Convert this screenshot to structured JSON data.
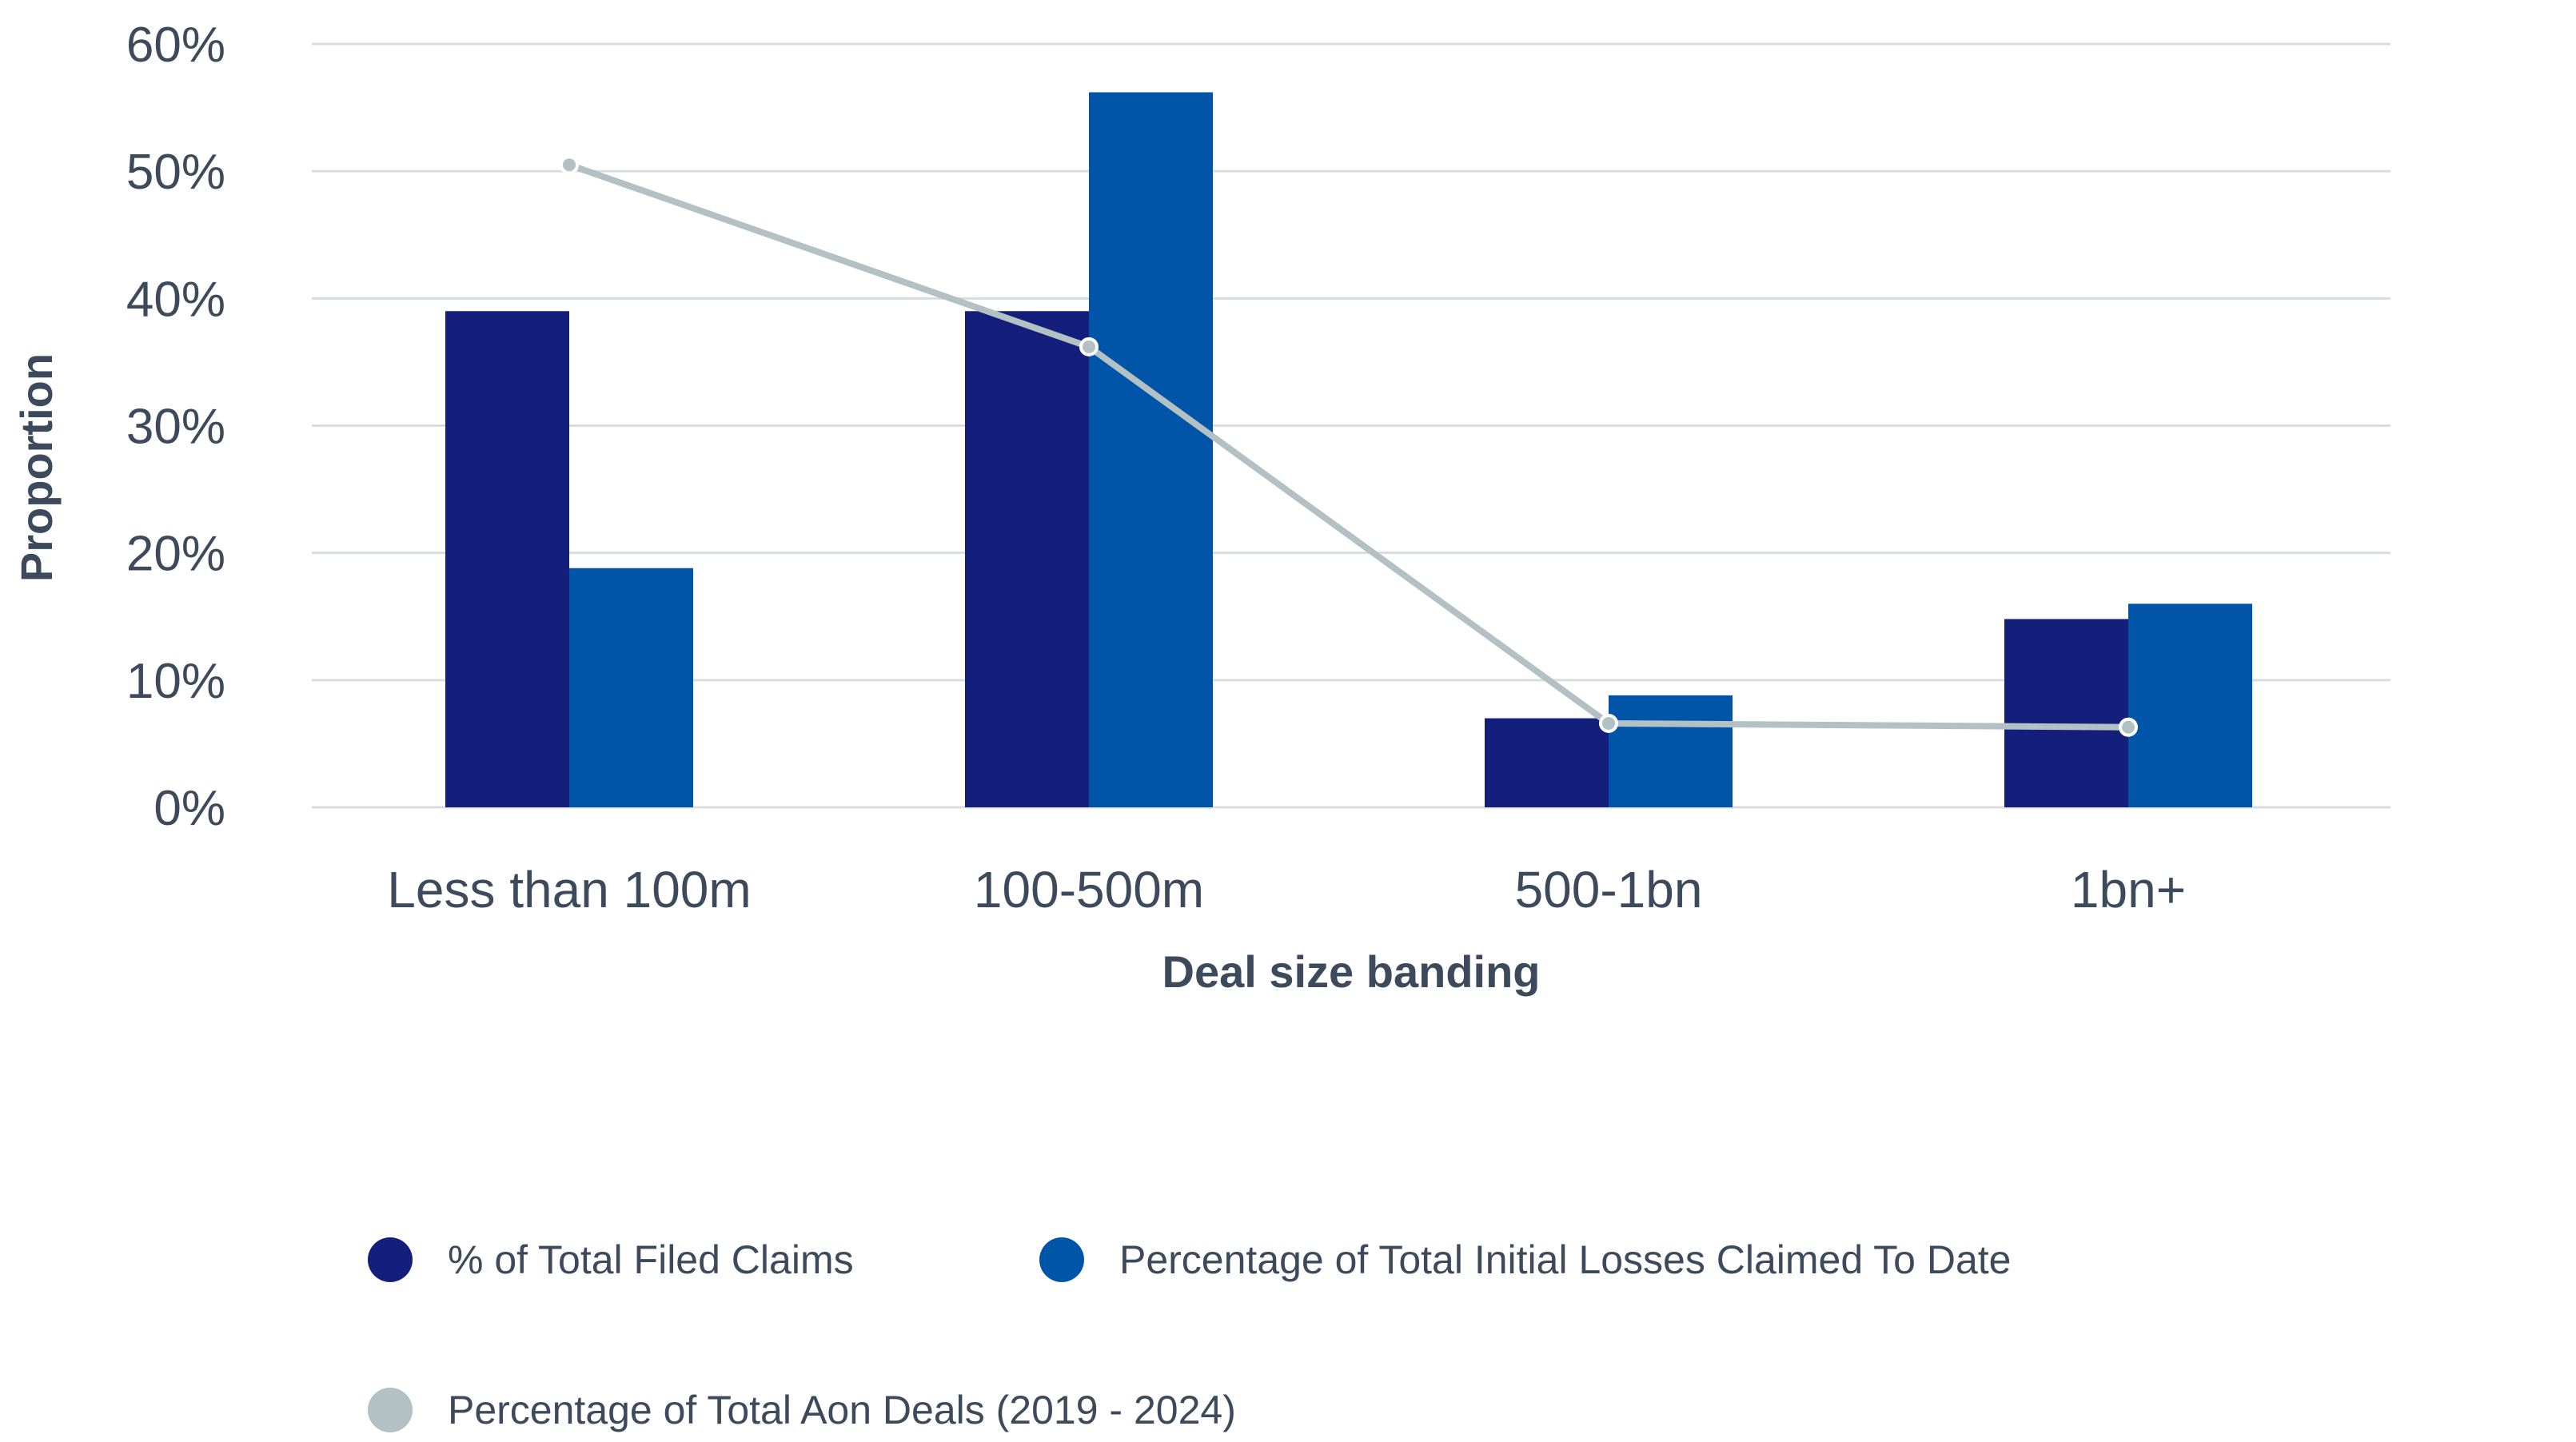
{
  "chart_data": {
    "type": "bar",
    "title": "",
    "xlabel": "Deal size banding",
    "ylabel": "Proportion",
    "ylim": [
      0,
      60
    ],
    "yticks": [
      0,
      10,
      20,
      30,
      40,
      50,
      60
    ],
    "ytick_labels": [
      "0%",
      "10%",
      "20%",
      "30%",
      "40%",
      "50%",
      "60%"
    ],
    "grid": true,
    "categories": [
      "Less than 100m",
      "100-500m",
      "500-1bn",
      "1bn+"
    ],
    "series": [
      {
        "name": "% of Total Filed Claims",
        "type": "bar",
        "color": "#131f7b",
        "values": [
          39,
          39,
          7,
          14.8
        ]
      },
      {
        "name": "Percentage of Total Initial Losses Claimed To Date",
        "type": "bar",
        "color": "#0055a8",
        "values": [
          18.8,
          56.2,
          8.8,
          16
        ]
      },
      {
        "name": "Percentage of Total Aon Deals (2019 - 2024)",
        "type": "line",
        "color": "#b3c1c4",
        "values": [
          50.5,
          36.2,
          6.6,
          6.3
        ]
      }
    ],
    "legend_position": "bottom"
  },
  "colors": {
    "grid": "#d9dde1",
    "axis_text": "#3d4a5c"
  }
}
